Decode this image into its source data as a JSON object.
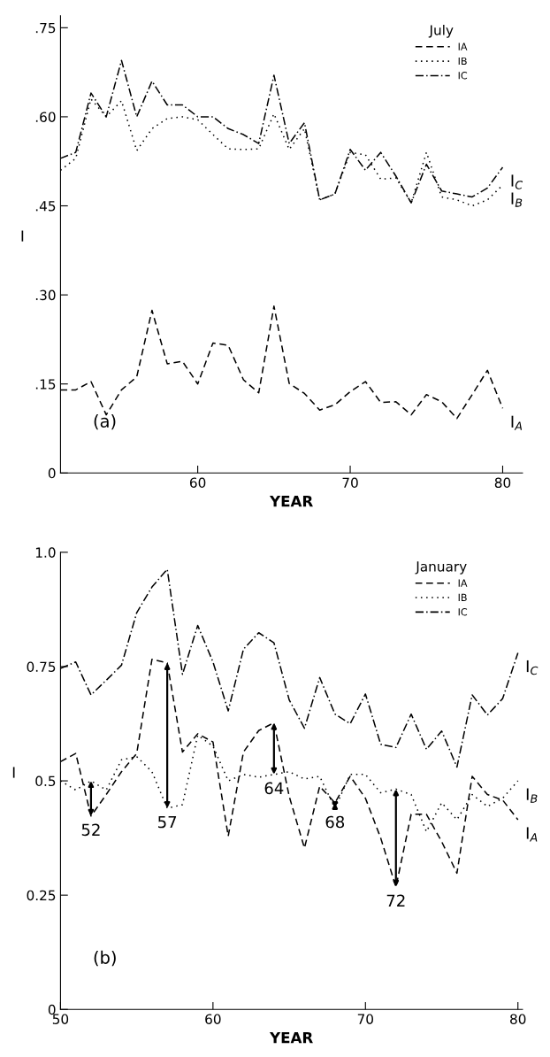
{
  "chart_data": [
    {
      "type": "line",
      "xlabel": "YEAR",
      "ylabel": "I",
      "legend_title": "July",
      "legend": "top right",
      "grid": false,
      "x": [
        51,
        52,
        53,
        54,
        55,
        56,
        57,
        58,
        59,
        60,
        61,
        62,
        63,
        64,
        65,
        66,
        67,
        68,
        69,
        70,
        71,
        72,
        73,
        74,
        75,
        76,
        77,
        78,
        79,
        80
      ],
      "xlim": [
        51,
        81.3
      ],
      "xticks": [
        60,
        70,
        80
      ],
      "ylim": [
        0,
        0.77
      ],
      "yticks": [
        {
          "value": 0,
          "label": "0"
        },
        {
          "value": 0.15,
          "label": ".15"
        },
        {
          "value": 0.3,
          "label": ".30"
        },
        {
          "value": 0.45,
          "label": ".45"
        },
        {
          "value": 0.6,
          "label": ".60"
        },
        {
          "value": 0.75,
          "label": ".75"
        }
      ],
      "series": [
        {
          "name": "IA",
          "color": "#000000",
          "line_style": "dashed",
          "values": [
            0.14,
            0.14,
            0.154,
            0.098,
            0.14,
            0.162,
            0.274,
            0.184,
            0.188,
            0.15,
            0.219,
            0.215,
            0.157,
            0.135,
            0.281,
            0.151,
            0.134,
            0.106,
            0.115,
            0.137,
            0.154,
            0.119,
            0.12,
            0.098,
            0.132,
            0.12,
            0.092,
            0.132,
            0.173,
            0.109
          ]
        },
        {
          "name": "IB",
          "color": "#000000",
          "line_style": "dotted",
          "values": [
            0.51,
            0.53,
            0.63,
            0.6,
            0.627,
            0.543,
            0.58,
            0.597,
            0.6,
            0.595,
            0.57,
            0.546,
            0.545,
            0.546,
            0.605,
            0.545,
            0.58,
            0.46,
            0.47,
            0.54,
            0.536,
            0.495,
            0.497,
            0.455,
            0.54,
            0.465,
            0.46,
            0.45,
            0.46,
            0.485
          ]
        },
        {
          "name": "IC",
          "color": "#000000",
          "line_style": "dashdot",
          "values": [
            0.53,
            0.54,
            0.64,
            0.6,
            0.695,
            0.6,
            0.66,
            0.62,
            0.62,
            0.6,
            0.6,
            0.58,
            0.57,
            0.555,
            0.67,
            0.555,
            0.59,
            0.46,
            0.47,
            0.545,
            0.51,
            0.54,
            0.5,
            0.455,
            0.52,
            0.475,
            0.47,
            0.465,
            0.48,
            0.515
          ]
        }
      ],
      "annotations": [
        "(a)",
        {
          "text": "I$_{C}$",
          "x": 80,
          "y": 0.515
        },
        {
          "text": "I$_{B}$",
          "x": 80,
          "y": 0.485
        },
        {
          "text": "I$_{A}$",
          "x": 80,
          "y": 0.109
        }
      ]
    },
    {
      "type": "line",
      "xlabel": "YEAR",
      "ylabel": "I",
      "legend_title": "January",
      "legend": "top right",
      "grid": false,
      "x": [
        50,
        51,
        52,
        53,
        54,
        55,
        56,
        57,
        58,
        59,
        60,
        61,
        62,
        63,
        64,
        65,
        66,
        67,
        68,
        69,
        70,
        71,
        72,
        73,
        74,
        75,
        76,
        77,
        78,
        79,
        80
      ],
      "xlim": [
        50,
        80.3
      ],
      "xticks": [
        50,
        60,
        70,
        80
      ],
      "ylim": [
        0,
        1.0
      ],
      "yticks": [
        {
          "value": 0,
          "label": "0"
        },
        {
          "value": 0.25,
          "label": "0.25"
        },
        {
          "value": 0.5,
          "label": "0.5"
        },
        {
          "value": 0.75,
          "label": "0.75"
        },
        {
          "value": 1.0,
          "label": "1.0"
        }
      ],
      "series": [
        {
          "name": "IA",
          "color": "#000000",
          "line_style": "dashed",
          "values": [
            0.542,
            0.56,
            0.423,
            0.47,
            0.52,
            0.56,
            0.766,
            0.758,
            0.563,
            0.603,
            0.585,
            0.379,
            0.563,
            0.61,
            0.627,
            0.466,
            0.353,
            0.488,
            0.452,
            0.51,
            0.462,
            0.375,
            0.268,
            0.427,
            0.427,
            0.367,
            0.298,
            0.51,
            0.47,
            0.458,
            0.415
          ]
        },
        {
          "name": "IB",
          "color": "#000000",
          "line_style": "dotted",
          "values": [
            0.5,
            0.48,
            0.5,
            0.48,
            0.546,
            0.553,
            0.52,
            0.44,
            0.448,
            0.6,
            0.576,
            0.5,
            0.514,
            0.508,
            0.514,
            0.52,
            0.504,
            0.51,
            0.44,
            0.514,
            0.514,
            0.474,
            0.482,
            0.47,
            0.389,
            0.452,
            0.415,
            0.47,
            0.444,
            0.462,
            0.5
          ]
        },
        {
          "name": "IC",
          "color": "#000000",
          "line_style": "dashdot",
          "values": [
            0.746,
            0.76,
            0.688,
            0.72,
            0.753,
            0.868,
            0.924,
            0.963,
            0.733,
            0.84,
            0.76,
            0.653,
            0.788,
            0.824,
            0.802,
            0.677,
            0.615,
            0.726,
            0.646,
            0.625,
            0.69,
            0.58,
            0.573,
            0.646,
            0.569,
            0.609,
            0.53,
            0.688,
            0.644,
            0.68,
            0.78
          ]
        }
      ],
      "annotations": [
        "(b)",
        {
          "text": "52",
          "x": 52,
          "y": 0.423
        },
        {
          "text": "57",
          "x": 57,
          "y": 0.44
        },
        {
          "text": "64",
          "x": 64,
          "y": 0.514
        },
        {
          "text": "68",
          "x": 68,
          "y": 0.44
        },
        {
          "text": "72",
          "x": 72,
          "y": 0.268
        },
        {
          "text": "I$_{C}$",
          "x": 80,
          "y": 0.78
        },
        {
          "text": "I$_{B}$",
          "x": 80,
          "y": 0.5
        },
        {
          "text": "I$_{A}$",
          "x": 80,
          "y": 0.415
        }
      ]
    }
  ]
}
